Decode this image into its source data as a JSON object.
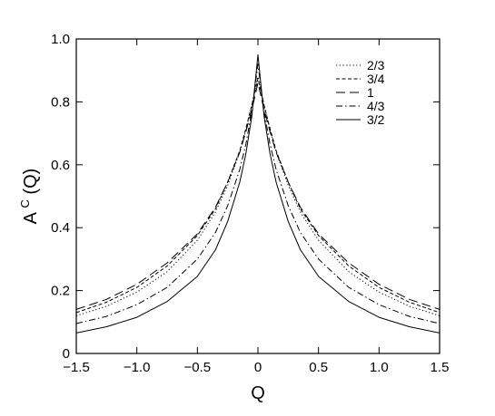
{
  "chart_data": {
    "type": "line",
    "title": "",
    "xlabel": "Q",
    "ylabel": "A^C(Q)",
    "ylabel_base": "A",
    "ylabel_superscript": "C",
    "ylabel_arg": "(Q)",
    "xlim": [
      -1.5,
      1.5
    ],
    "ylim": [
      0.0,
      1.0
    ],
    "xticks": [
      -1.5,
      -1.0,
      -0.5,
      0,
      0.5,
      1.0,
      1.5
    ],
    "xtick_labels": [
      "−1.5",
      "−1.0",
      "−0.5",
      "0",
      "0.5",
      "1.0",
      "1.5"
    ],
    "yticks": [
      0,
      0.2,
      0.4,
      0.6,
      0.8,
      1.0
    ],
    "ytick_labels": [
      "0",
      "0.2",
      "0.4",
      "0.6",
      "0.8",
      "1.0"
    ],
    "grid": false,
    "legend_position": "top-right",
    "x": [
      -1.5,
      -1.25,
      -1.0,
      -0.75,
      -0.5,
      -0.35,
      -0.25,
      -0.15,
      -0.1,
      -0.05,
      0,
      0.05,
      0.1,
      0.15,
      0.25,
      0.35,
      0.5,
      0.75,
      1.0,
      1.25,
      1.5
    ],
    "series": [
      {
        "name": "2/3",
        "dash": "dotted",
        "values": [
          0.12,
          0.15,
          0.195,
          0.26,
          0.36,
          0.45,
          0.535,
          0.64,
          0.71,
          0.79,
          0.88,
          0.79,
          0.71,
          0.64,
          0.535,
          0.45,
          0.36,
          0.26,
          0.195,
          0.15,
          0.12
        ]
      },
      {
        "name": "3/4",
        "dash": "short-dash",
        "values": [
          0.13,
          0.163,
          0.21,
          0.278,
          0.375,
          0.46,
          0.545,
          0.645,
          0.715,
          0.79,
          0.875,
          0.79,
          0.715,
          0.645,
          0.545,
          0.46,
          0.375,
          0.278,
          0.21,
          0.163,
          0.13
        ]
      },
      {
        "name": "1",
        "dash": "long-dash",
        "values": [
          0.14,
          0.172,
          0.22,
          0.288,
          0.38,
          0.465,
          0.545,
          0.64,
          0.705,
          0.775,
          0.86,
          0.775,
          0.705,
          0.64,
          0.545,
          0.465,
          0.38,
          0.288,
          0.22,
          0.172,
          0.14
        ]
      },
      {
        "name": "4/3",
        "dash": "dash-dot",
        "values": [
          0.095,
          0.118,
          0.155,
          0.21,
          0.3,
          0.385,
          0.47,
          0.585,
          0.665,
          0.77,
          0.92,
          0.77,
          0.665,
          0.585,
          0.47,
          0.385,
          0.3,
          0.21,
          0.155,
          0.118,
          0.095
        ]
      },
      {
        "name": "3/2",
        "dash": "solid",
        "values": [
          0.065,
          0.085,
          0.115,
          0.165,
          0.245,
          0.33,
          0.42,
          0.545,
          0.635,
          0.755,
          0.95,
          0.755,
          0.635,
          0.545,
          0.42,
          0.33,
          0.245,
          0.165,
          0.115,
          0.085,
          0.065
        ]
      }
    ],
    "colors": {
      "axis": "#000000",
      "line": "#000000",
      "background": "#ffffff"
    }
  }
}
